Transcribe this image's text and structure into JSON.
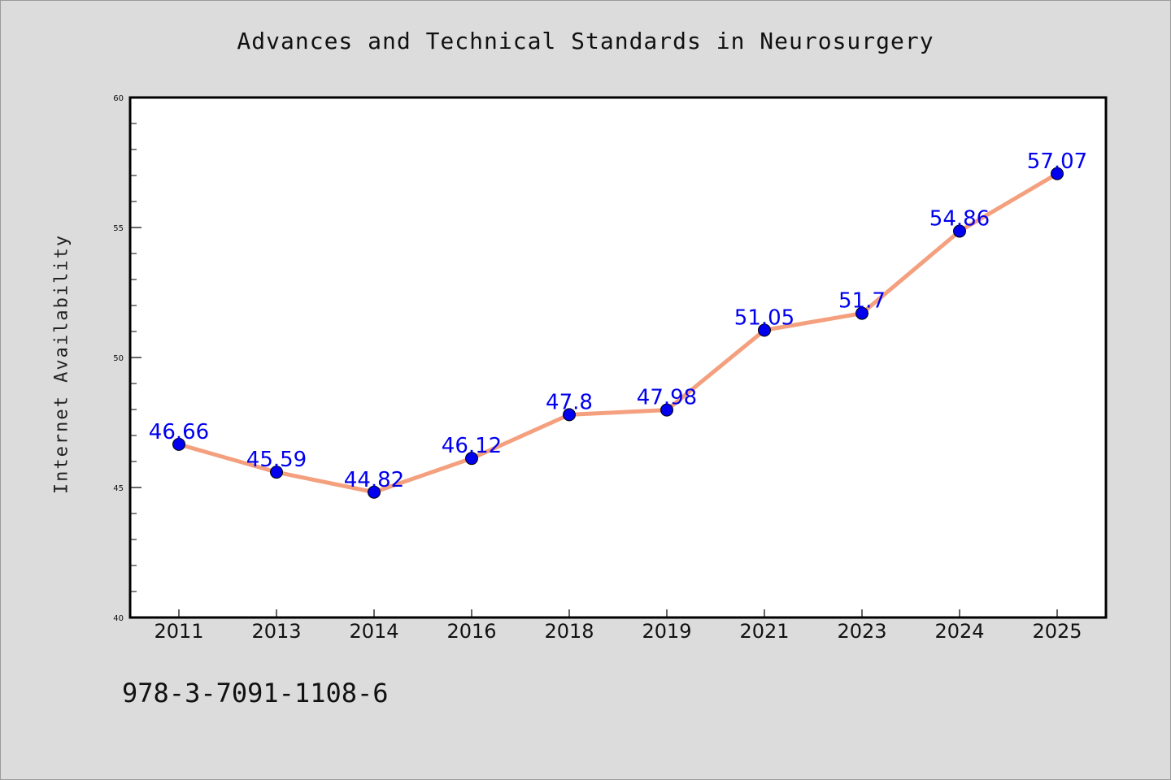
{
  "chart_data": {
    "type": "line",
    "title": "Advances and Technical Standards in Neurosurgery",
    "xlabel": "",
    "ylabel": "Internet Availability",
    "categories": [
      "2011",
      "2013",
      "2014",
      "2016",
      "2018",
      "2019",
      "2021",
      "2023",
      "2024",
      "2025"
    ],
    "series": [
      {
        "values": [
          46.66,
          45.59,
          44.82,
          46.12,
          47.8,
          47.98,
          51.05,
          51.7,
          54.86,
          57.07
        ],
        "data_labels": [
          "46.66",
          "45.59",
          "44.82",
          "46.12",
          "47.8",
          "47.98",
          "51.05",
          "51.7",
          "54.86",
          "57.07"
        ],
        "line_color": "#f4a07e",
        "marker_color": "#0000ee",
        "label_color": "#0000ee"
      }
    ],
    "ylim": [
      40,
      60
    ],
    "yticks": [
      "40",
      "45",
      "50",
      "55",
      "60"
    ],
    "grid": false
  },
  "footer": {
    "code": "978-3-7091-1108-6"
  }
}
